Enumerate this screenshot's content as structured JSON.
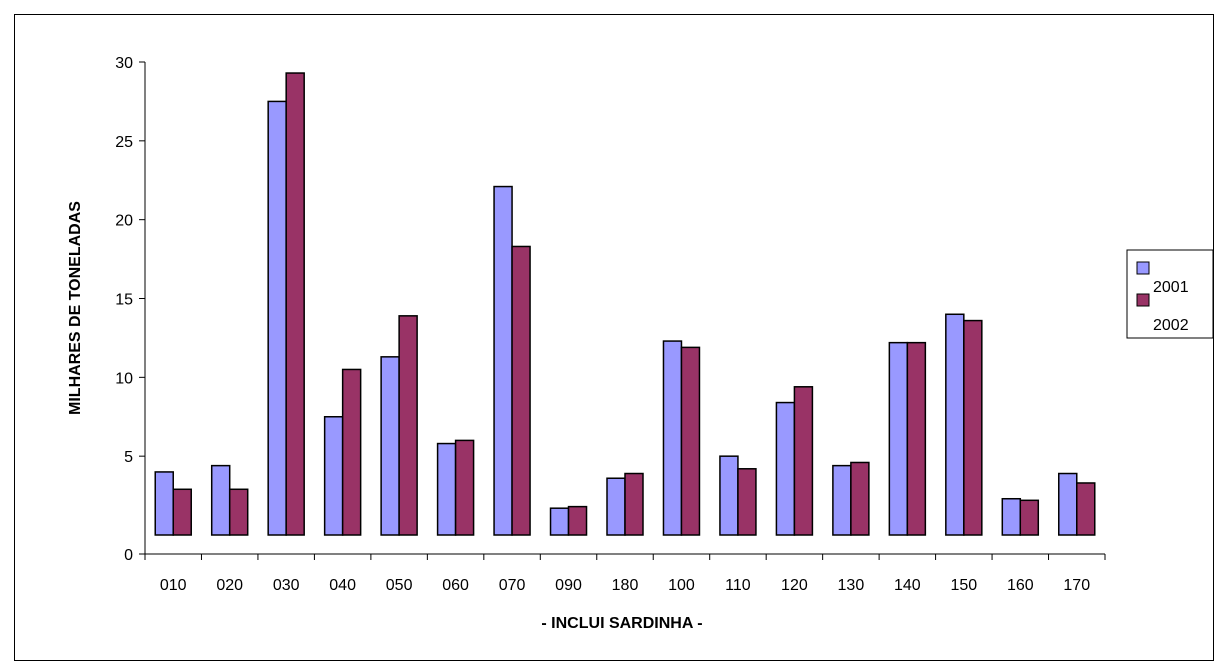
{
  "chart_data": {
    "type": "bar",
    "title": "",
    "xlabel": "- INCLUI SARDINHA -",
    "ylabel": "MILHARES DE TONELADAS",
    "ylim": [
      0,
      30
    ],
    "yticks": [
      0,
      5,
      10,
      15,
      20,
      25,
      30
    ],
    "grid": false,
    "legend_position": "right",
    "categories": [
      "010",
      "020",
      "030",
      "040",
      "050",
      "060",
      "070",
      "090",
      "180",
      "100",
      "110",
      "120",
      "130",
      "140",
      "150",
      "160",
      "170"
    ],
    "series": [
      {
        "name": "2001",
        "color": "#9999ff",
        "values": [
          4.0,
          4.4,
          27.5,
          7.5,
          11.3,
          5.8,
          22.1,
          1.7,
          3.6,
          12.3,
          5.0,
          8.4,
          4.4,
          12.2,
          14.0,
          2.3,
          3.9
        ]
      },
      {
        "name": "2002",
        "color": "#993366",
        "values": [
          2.9,
          2.9,
          29.3,
          10.5,
          13.9,
          6.0,
          18.3,
          1.8,
          3.9,
          11.9,
          4.2,
          9.4,
          4.6,
          12.2,
          13.6,
          2.2,
          3.3
        ]
      }
    ],
    "legend": [
      "2001",
      "2002"
    ]
  }
}
